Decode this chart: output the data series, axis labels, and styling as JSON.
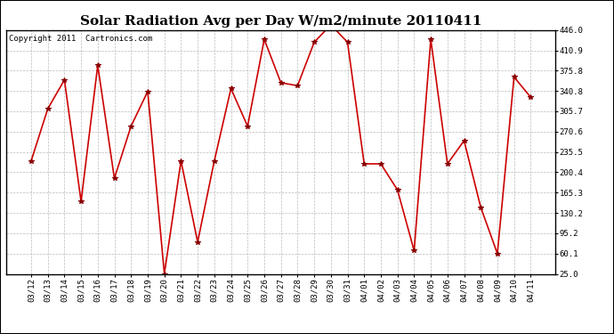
{
  "title": "Solar Radiation Avg per Day W/m2/minute 20110411",
  "copyright_text": "Copyright 2011  Cartronics.com",
  "labels": [
    "03/12",
    "03/13",
    "03/14",
    "03/15",
    "03/16",
    "03/17",
    "03/18",
    "03/19",
    "03/20",
    "03/21",
    "03/22",
    "03/23",
    "03/24",
    "03/25",
    "03/26",
    "03/27",
    "03/28",
    "03/29",
    "03/30",
    "03/31",
    "04/01",
    "04/02",
    "04/03",
    "04/04",
    "04/05",
    "04/06",
    "04/07",
    "04/08",
    "04/09",
    "04/10",
    "04/11"
  ],
  "values": [
    220,
    310,
    360,
    150,
    385,
    190,
    280,
    340,
    25,
    220,
    80,
    220,
    345,
    280,
    430,
    355,
    350,
    425,
    455,
    425,
    215,
    215,
    170,
    65,
    430,
    215,
    255,
    140,
    60,
    365,
    330
  ],
  "line_color": "#cc0000",
  "marker_color": "#880000",
  "bg_color": "#ffffff",
  "plot_bg_color": "#ffffff",
  "grid_color": "#bbbbbb",
  "ylim": [
    25.0,
    446.0
  ],
  "yticks": [
    25.0,
    60.1,
    95.2,
    130.2,
    165.3,
    200.4,
    235.5,
    270.6,
    305.7,
    340.8,
    375.8,
    410.9,
    446.0
  ],
  "title_fontsize": 11,
  "copyright_fontsize": 6.5,
  "tick_fontsize": 6.5
}
